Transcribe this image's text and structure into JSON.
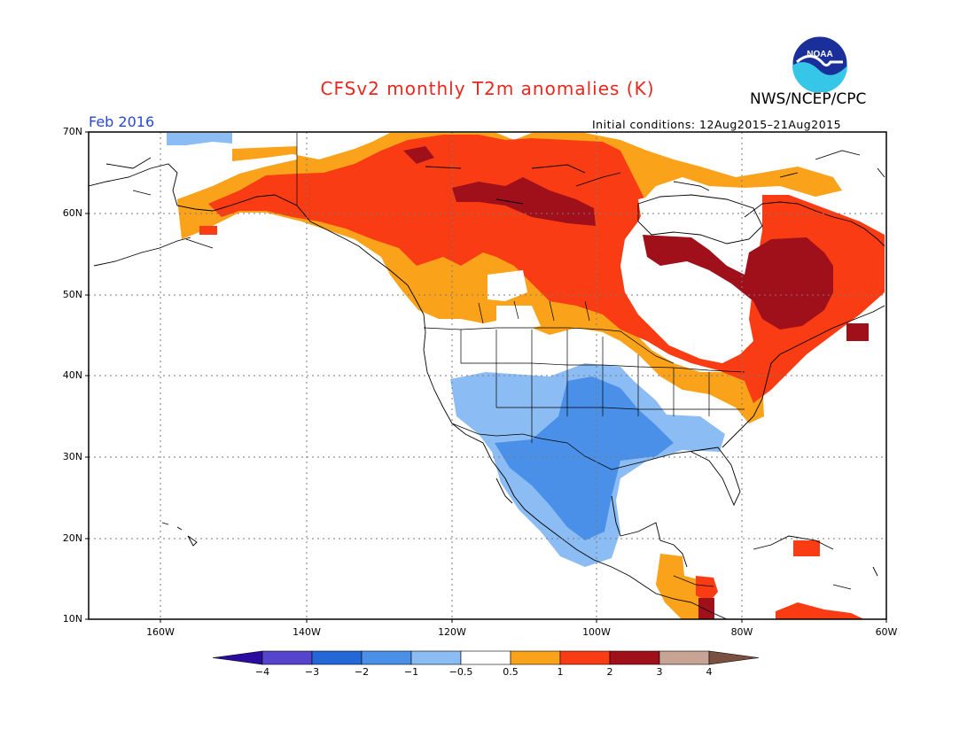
{
  "title": "CFSv2 monthly T2m anomalies (K)",
  "organization": "NWS/NCEP/CPC",
  "logo_text": "NOAA",
  "period": "Feb 2016",
  "initial_conditions": "Initial conditions: 12Aug2015–21Aug2015",
  "lat_labels": [
    "70N",
    "60N",
    "50N",
    "40N",
    "30N",
    "20N",
    "10N"
  ],
  "lon_labels": [
    "160W",
    "140W",
    "120W",
    "100W",
    "80W",
    "60W"
  ],
  "colorbar": {
    "labels": [
      "−4",
      "−3",
      "−2",
      "−1",
      "−0.5",
      "0.5",
      "1",
      "2",
      "3",
      "4"
    ],
    "colors": [
      "#2a0d9e",
      "#5544cc",
      "#2468d8",
      "#4a90e8",
      "#8cbcf4",
      "#ffffff",
      "#f9a21a",
      "#fa3c14",
      "#a0101a",
      "#c8a494",
      "#7a5040"
    ]
  }
}
